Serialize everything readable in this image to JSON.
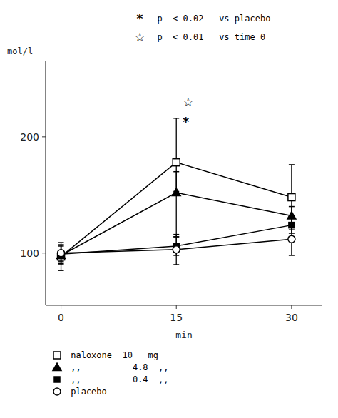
{
  "chart_data": {
    "type": "line",
    "x_label": "min",
    "y_label": "mol/l",
    "x": [
      0,
      15,
      30
    ],
    "xlim": [
      -2,
      34
    ],
    "ylim": [
      55,
      265
    ],
    "xticks": [
      0,
      15,
      30
    ],
    "yticks": [
      100,
      200
    ],
    "legend": "bottom",
    "grid": false,
    "series": [
      {
        "name": " naloxone  10   mg",
        "color": "black",
        "marker": "open-square",
        "values": [
          97,
          178,
          148
        ],
        "yerr_low": [
          12,
          25,
          28
        ],
        "yerr_high": [
          12,
          38,
          28
        ]
      },
      {
        "name": " ,,          4.8  ,,",
        "color": "black",
        "marker": "triangle",
        "values": [
          98,
          152,
          132
        ],
        "yerr_low": [
          8,
          38,
          8
        ],
        "yerr_high": [
          8,
          18,
          8
        ]
      },
      {
        "name": " ,,          0.4  ,,",
        "color": "black",
        "marker": "square",
        "values": [
          99,
          106,
          124
        ],
        "yerr_low": [
          8,
          8,
          7
        ],
        "yerr_high": [
          8,
          8,
          7
        ]
      },
      {
        "name": " placebo",
        "color": "black",
        "marker": "open-circle",
        "values": [
          100,
          103,
          112
        ],
        "yerr_low": [
          7,
          13,
          14
        ],
        "yerr_high": [
          7,
          13,
          14
        ]
      }
    ],
    "annotations": [
      {
        "text": "☆",
        "x": 15,
        "y": 230
      },
      {
        "text": "*",
        "x": 15,
        "y": 213
      },
      {
        "symbol": "*",
        "text": "  p  < 0.02   vs placebo"
      },
      {
        "symbol": "☆",
        "text": "  p  < 0.01   vs time 0"
      }
    ]
  }
}
